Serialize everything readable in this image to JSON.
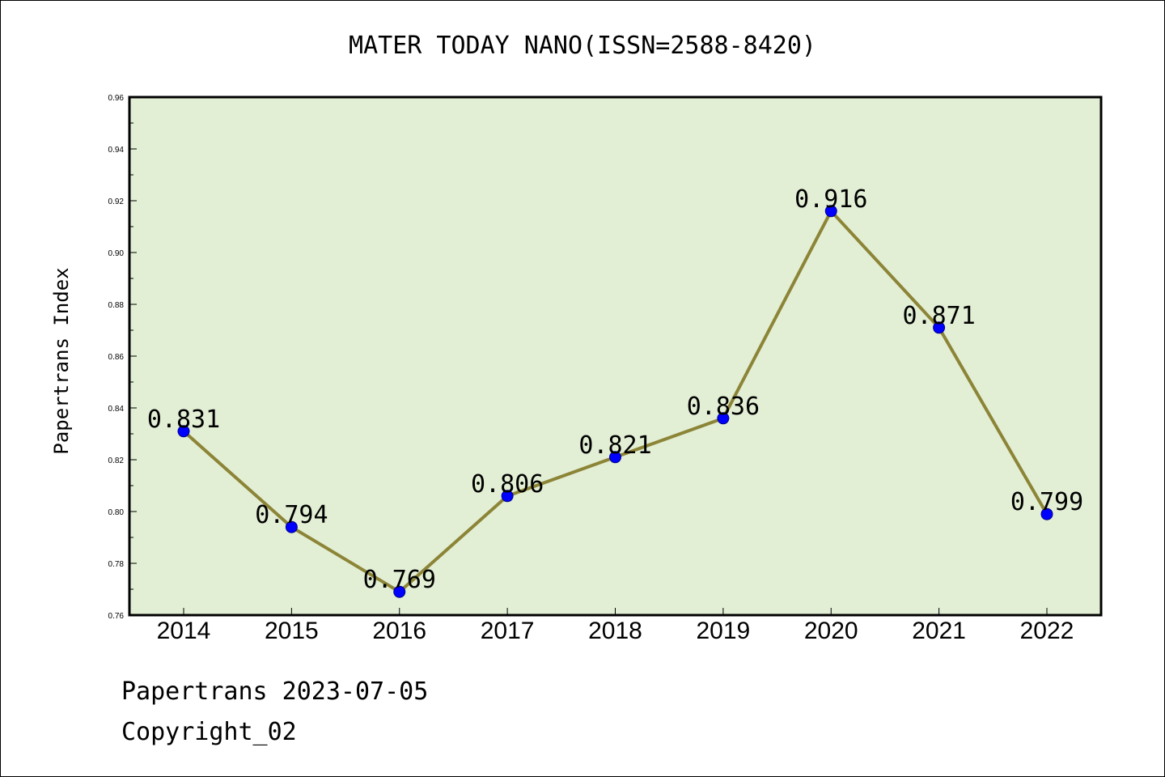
{
  "chart_data": {
    "type": "line",
    "title": "MATER TODAY NANO(ISSN=2588-8420)",
    "ylabel": "Papertrans Index",
    "xlabel": "",
    "categories": [
      "2014",
      "2015",
      "2016",
      "2017",
      "2018",
      "2019",
      "2020",
      "2021",
      "2022"
    ],
    "values": [
      0.831,
      0.794,
      0.769,
      0.806,
      0.821,
      0.836,
      0.916,
      0.871,
      0.799
    ],
    "data_labels": [
      "0.831",
      "0.794",
      "0.769",
      "0.806",
      "0.821",
      "0.836",
      "0.916",
      "0.871",
      "0.799"
    ],
    "ylim": [
      0.76,
      0.96
    ],
    "yticks": [
      0.76,
      0.78,
      0.8,
      0.82,
      0.84,
      0.86,
      0.88,
      0.9,
      0.92,
      0.94,
      0.96
    ],
    "ytick_labels": [
      "0.76",
      "0.78",
      "0.80",
      "0.82",
      "0.84",
      "0.86",
      "0.88",
      "0.90",
      "0.92",
      "0.94",
      "0.96"
    ],
    "grid": false,
    "colors": {
      "plot_background": "#e2efd5",
      "line": "#8c8436",
      "marker": "#0000ff",
      "marker_edge": "#00008b"
    }
  },
  "footer": {
    "line1": "Papertrans 2023-07-05",
    "line2": "Copyright_02"
  }
}
